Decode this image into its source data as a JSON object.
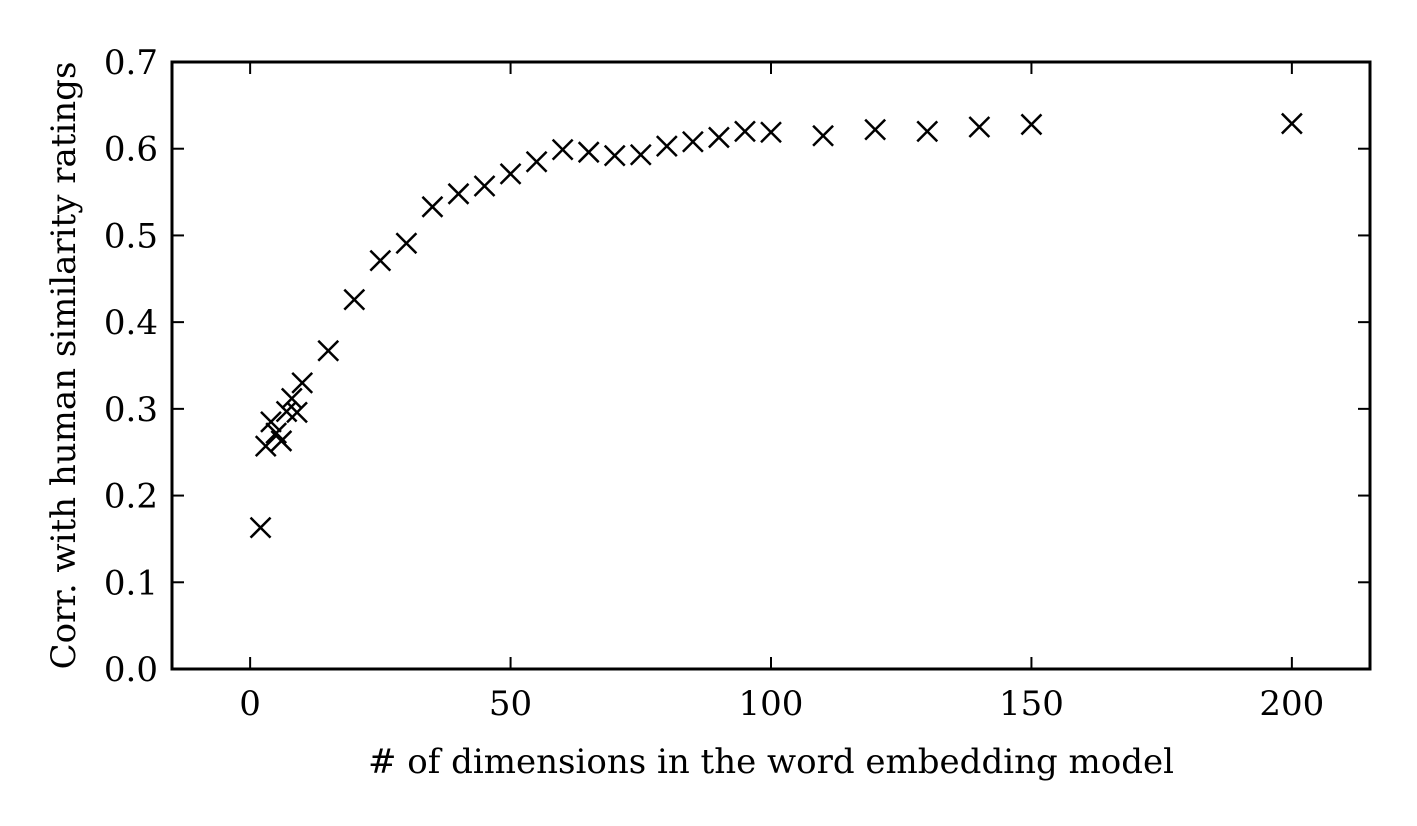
{
  "chart_data": {
    "type": "scatter",
    "title": "",
    "xlabel": "# of dimensions in the word embedding model",
    "ylabel": "Corr. with human similarity ratings",
    "xlim": [
      -15,
      215
    ],
    "ylim": [
      0.0,
      0.7
    ],
    "x_ticks": [
      0,
      50,
      100,
      150,
      200
    ],
    "y_ticks": [
      0.0,
      0.1,
      0.2,
      0.3,
      0.4,
      0.5,
      0.6,
      0.7
    ],
    "x_tick_labels": [
      "0",
      "50",
      "100",
      "150",
      "200"
    ],
    "y_tick_labels": [
      "0.0",
      "0.1",
      "0.2",
      "0.3",
      "0.4",
      "0.5",
      "0.6",
      "0.7"
    ],
    "grid": false,
    "marker": "x",
    "marker_color": "#000000",
    "series": [
      {
        "points": [
          {
            "x": 2,
            "y": 0.163
          },
          {
            "x": 3,
            "y": 0.257
          },
          {
            "x": 4,
            "y": 0.285
          },
          {
            "x": 5,
            "y": 0.272
          },
          {
            "x": 6,
            "y": 0.263
          },
          {
            "x": 7,
            "y": 0.297
          },
          {
            "x": 8,
            "y": 0.312
          },
          {
            "x": 9,
            "y": 0.296
          },
          {
            "x": 10,
            "y": 0.33
          },
          {
            "x": 15,
            "y": 0.367
          },
          {
            "x": 20,
            "y": 0.426
          },
          {
            "x": 25,
            "y": 0.471
          },
          {
            "x": 30,
            "y": 0.491
          },
          {
            "x": 35,
            "y": 0.533
          },
          {
            "x": 40,
            "y": 0.548
          },
          {
            "x": 45,
            "y": 0.557
          },
          {
            "x": 50,
            "y": 0.571
          },
          {
            "x": 55,
            "y": 0.585
          },
          {
            "x": 60,
            "y": 0.599
          },
          {
            "x": 65,
            "y": 0.596
          },
          {
            "x": 70,
            "y": 0.592
          },
          {
            "x": 75,
            "y": 0.593
          },
          {
            "x": 80,
            "y": 0.603
          },
          {
            "x": 85,
            "y": 0.608
          },
          {
            "x": 90,
            "y": 0.613
          },
          {
            "x": 95,
            "y": 0.62
          },
          {
            "x": 100,
            "y": 0.619
          },
          {
            "x": 110,
            "y": 0.615
          },
          {
            "x": 120,
            "y": 0.622
          },
          {
            "x": 130,
            "y": 0.62
          },
          {
            "x": 140,
            "y": 0.625
          },
          {
            "x": 150,
            "y": 0.628
          },
          {
            "x": 200,
            "y": 0.629
          }
        ]
      }
    ]
  }
}
